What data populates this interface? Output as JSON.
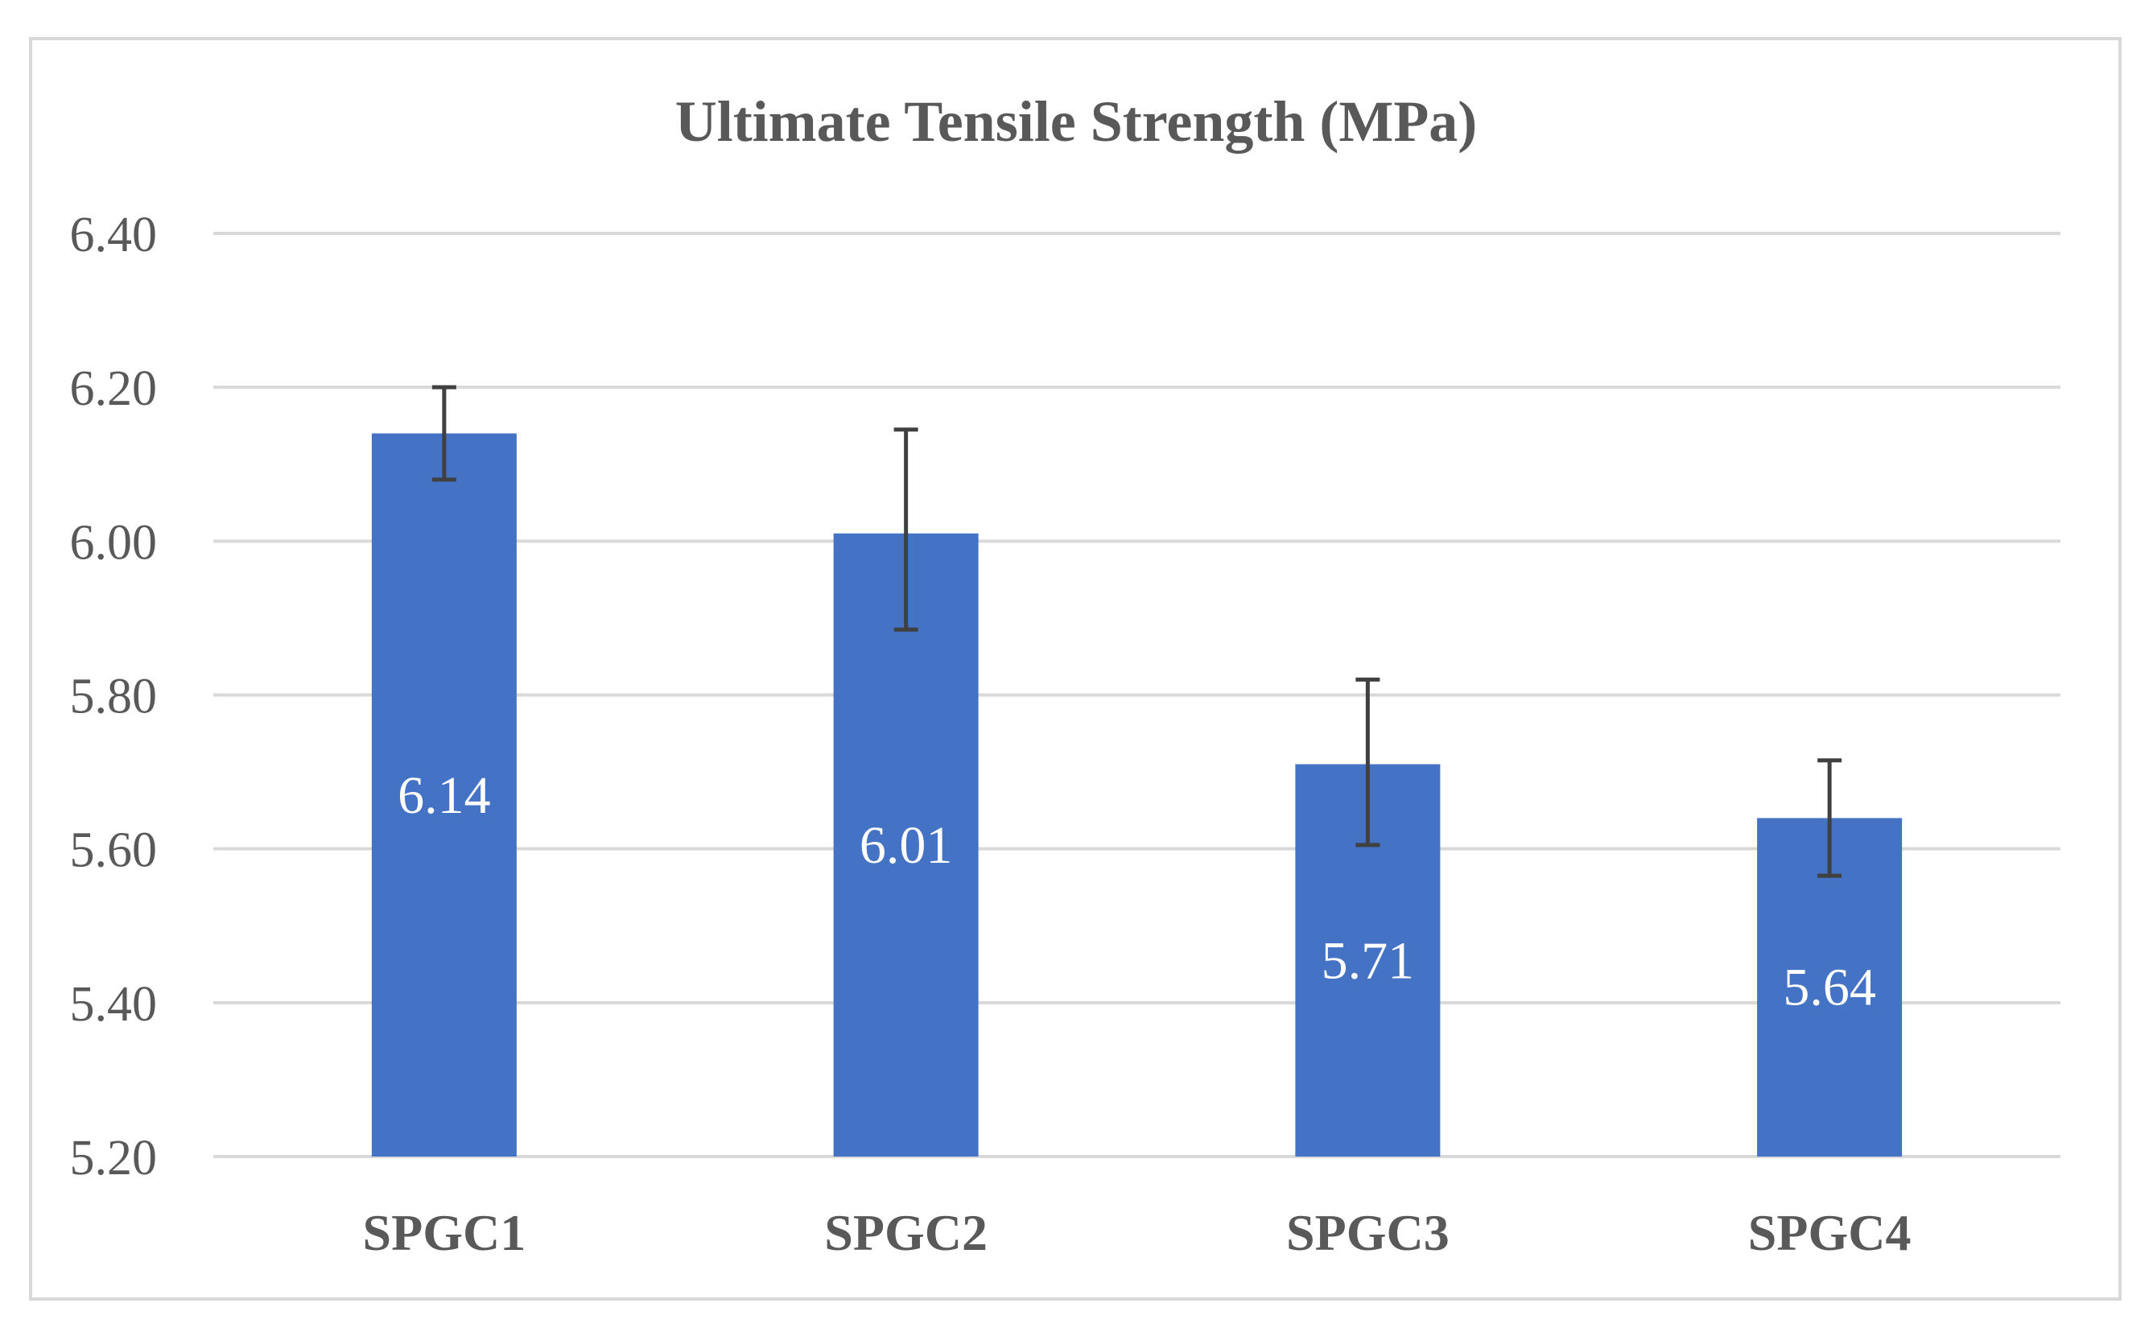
{
  "chart_data": {
    "type": "bar",
    "title": "Ultimate Tensile Strength (MPa)",
    "xlabel": "",
    "ylabel": "",
    "categories": [
      "SPGC1",
      "SPGC2",
      "SPGC3",
      "SPGC4"
    ],
    "values": [
      6.14,
      6.01,
      5.71,
      5.64
    ],
    "data_labels": [
      "6.14",
      "6.01",
      "5.71",
      "5.64"
    ],
    "error_bars": {
      "upper": [
        6.2,
        6.145,
        5.82,
        5.715
      ],
      "lower": [
        6.08,
        5.885,
        5.605,
        5.565
      ]
    },
    "ylim": [
      5.2,
      6.4
    ],
    "y_ticks": [
      5.2,
      5.4,
      5.6,
      5.8,
      6.0,
      6.2,
      6.4
    ],
    "y_tick_labels": [
      "5.20",
      "5.40",
      "5.60",
      "5.80",
      "6.00",
      "6.20",
      "6.40"
    ],
    "grid": true,
    "legend": "none",
    "colors": {
      "bar": "#4472c4",
      "error_bar": "#404040",
      "grid": "#d9d9d9",
      "text": "#595959",
      "data_label": "#ffffff"
    }
  }
}
